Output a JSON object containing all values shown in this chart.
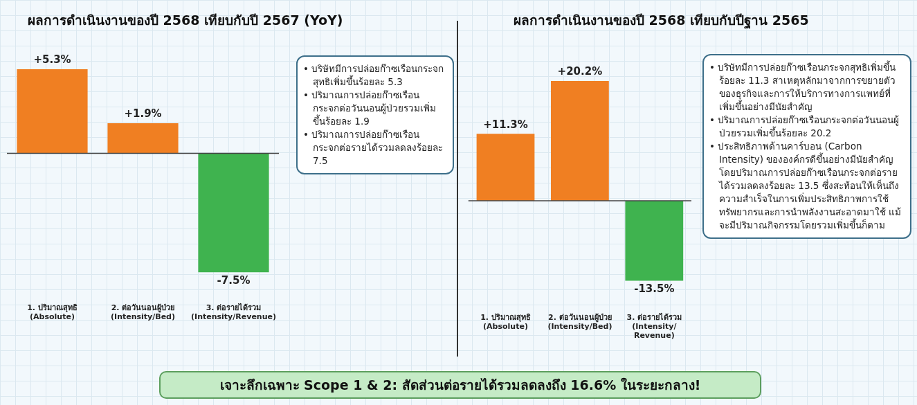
{
  "chart_data": [
    {
      "type": "bar",
      "title": "ผลการดำเนินงานของปี 2568 เทียบกับปี 2567 (YoY)",
      "categories": [
        "1. ปริมาณสุทธิ\n(Absolute)",
        "2. ต่อวันนอนผู้ป่วย\n(Intensity/Bed)",
        "3. ต่อรายได้รวม\n(Intensity/Revenue)"
      ],
      "values": [
        5.3,
        1.9,
        -7.5
      ],
      "colors": [
        "#f07f22",
        "#f07f22",
        "#3fb34f"
      ],
      "value_labels": [
        "+5.3%",
        "+1.9%",
        "-7.5%"
      ],
      "tick_labels": "x",
      "annotations": [
        "• บริษัทมีการปล่อยก๊าซเรือนกระจกสุทธิเพิ่มขึ้นร้อยละ 5.3",
        "• ปริมาณการปล่อยก๊าซเรือนกระจกต่อวันนอนผู้ป่วยรวมเพิ่มขึ้นร้อยละ 1.9",
        "• ปริมาณการปล่อยก๊าซเรือนกระจกต่อรายได้รวมลดลงร้อยละ 7.5"
      ]
    },
    {
      "type": "bar",
      "title": "ผลการดำเนินงานของปี 2568 เทียบกับปีฐาน 2565",
      "categories": [
        "1. ปริมาณสุทธิ\n(Absolute)",
        "2. ต่อวันนอนผู้ป่วย\n(Intensity/Bed)",
        "3. ต่อรายได้รวม\n(Intensity/\nRevenue)"
      ],
      "values": [
        11.3,
        20.2,
        -13.5
      ],
      "colors": [
        "#f07f22",
        "#f07f22",
        "#3fb34f"
      ],
      "value_labels": [
        "+11.3%",
        "+20.2%",
        "-13.5%"
      ],
      "tick_labels": "x",
      "annotations": [
        "• บริษัทมีการปล่อยก๊าซเรือนกระจกสุทธิเพิ่มขึ้นร้อยละ 11.3 สาเหตุหลักมาจากการขยายตัวของธุรกิจและการให้บริการทางการแพทย์ที่เพิ่มขึ้นอย่างมีนัยสำคัญ",
        "• ปริมาณการปล่อยก๊าซเรือนกระจกต่อวันนอนผู้ป่วยรวมเพิ่มขึ้นร้อยละ 20.2",
        "• ประสิทธิภาพด้านคาร์บอน (Carbon Intensity) ขององค์กรดีขึ้นอย่างมีนัยสำคัญ โดยปริมาณการปล่อยก๊าซเรือนกระจกต่อรายได้รวมลดลงร้อยละ 13.5 ซึ่งสะท้อนให้เห็นถึงความสำเร็จในการเพิ่มประสิทธิภาพการใช้ทรัพยากรและการนำพลังงานสะอาดมาใช้ แม้จะมีปริมาณกิจกรรมโดยรวมเพิ่มขึ้นก็ตาม"
      ]
    },
    {
      "type": "other",
      "title": "เจาะลึกเฉพาะ Scope 1 & 2: สัดส่วนต่อรายได้รวมลดลงถึง 16.6% ในระยะกลาง!"
    }
  ]
}
